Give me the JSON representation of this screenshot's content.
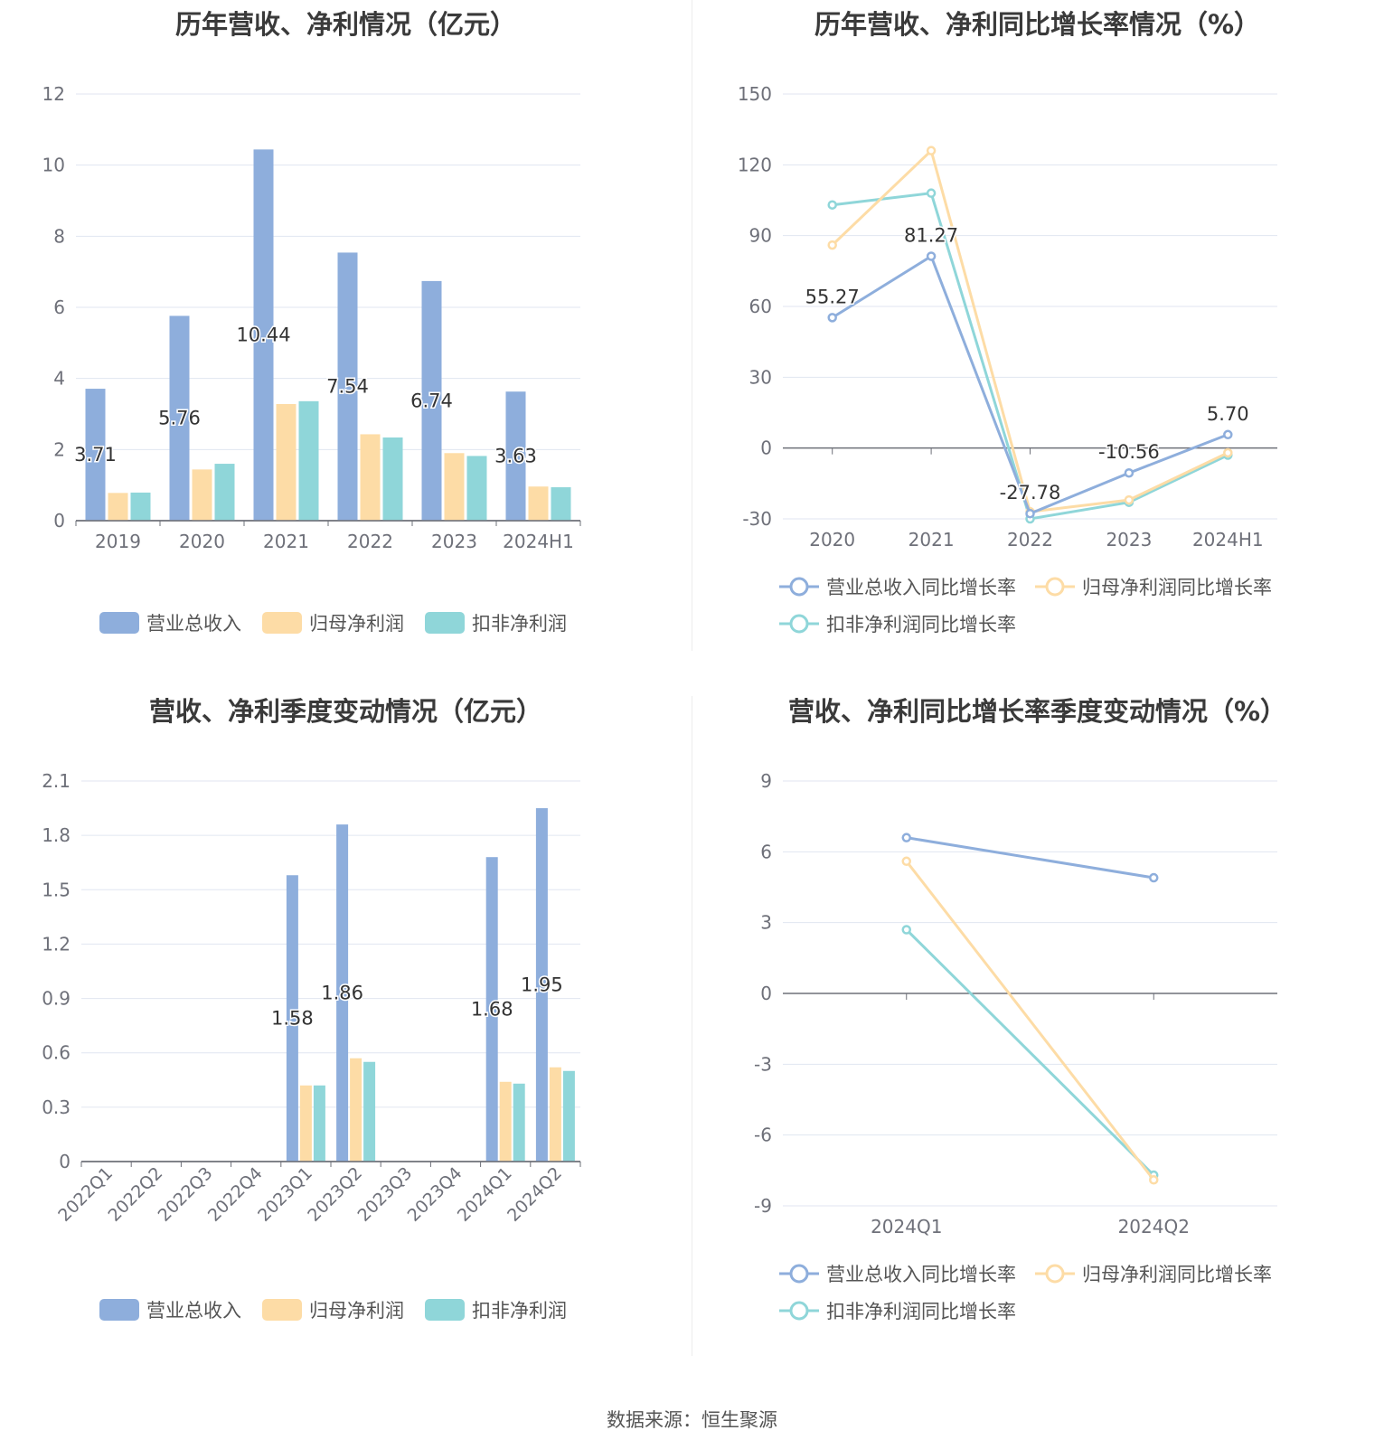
{
  "charts": {
    "annual_amounts": {
      "title": "历年营收、净利情况（亿元）",
      "chart_data": {
        "type": "bar",
        "categories": [
          "2019",
          "2020",
          "2021",
          "2022",
          "2023",
          "2024H1"
        ],
        "series": [
          {
            "name": "营业总收入",
            "values": [
              3.71,
              5.76,
              10.44,
              7.54,
              6.74,
              3.63
            ],
            "color": "#8eaedc",
            "labels": [
              "3.71",
              "5.76",
              "10.44",
              "7.54",
              "6.74",
              "3.63"
            ]
          },
          {
            "name": "归母净利润",
            "values": [
              0.78,
              1.44,
              3.28,
              2.43,
              1.9,
              0.96
            ],
            "color": "#fddca6"
          },
          {
            "name": "扣非净利润",
            "values": [
              0.79,
              1.6,
              3.36,
              2.34,
              1.82,
              0.94
            ],
            "color": "#8fd6d9"
          }
        ],
        "ylim": [
          0,
          12
        ],
        "yticks": [
          "0",
          "2",
          "4",
          "6",
          "8",
          "10",
          "12"
        ],
        "grid": true,
        "legend": "bottom"
      }
    },
    "annual_growth": {
      "title": "历年营收、净利同比增长率情况（%）",
      "chart_data": {
        "type": "line",
        "categories": [
          "2020",
          "2021",
          "2022",
          "2023",
          "2024H1"
        ],
        "series": [
          {
            "name": "营业总收入同比增长率",
            "values": [
              55.27,
              81.27,
              -27.78,
              -10.56,
              5.7
            ],
            "color": "#8eaedc",
            "labels": [
              "55.27",
              "81.27",
              "-27.78",
              "-10.56",
              "5.70"
            ]
          },
          {
            "name": "归母净利润同比增长率",
            "values": [
              86,
              126,
              -27,
              -22,
              -2
            ],
            "color": "#fddca6"
          },
          {
            "name": "扣非净利润同比增长率",
            "values": [
              103,
              108,
              -30,
              -23,
              -3
            ],
            "color": "#8fd6d9"
          }
        ],
        "ylim": [
          -30,
          150
        ],
        "yticks": [
          "-30",
          "0",
          "30",
          "60",
          "90",
          "120",
          "150"
        ],
        "grid": true,
        "legend": "bottom"
      }
    },
    "quarterly_amounts": {
      "title": "营收、净利季度变动情况（亿元）",
      "chart_data": {
        "type": "bar",
        "categories": [
          "2022Q1",
          "2022Q2",
          "2022Q3",
          "2022Q4",
          "2023Q1",
          "2023Q2",
          "2023Q3",
          "2023Q4",
          "2024Q1",
          "2024Q2"
        ],
        "series": [
          {
            "name": "营业总收入",
            "values": [
              null,
              null,
              null,
              null,
              1.58,
              1.86,
              null,
              null,
              1.68,
              1.95
            ],
            "color": "#8eaedc",
            "labels": [
              "",
              "",
              "",
              "",
              "1.58",
              "1.86",
              "",
              "",
              "1.68",
              "1.95"
            ]
          },
          {
            "name": "归母净利润",
            "values": [
              null,
              null,
              null,
              null,
              0.42,
              0.57,
              null,
              null,
              0.44,
              0.52
            ],
            "color": "#fddca6"
          },
          {
            "name": "扣非净利润",
            "values": [
              null,
              null,
              null,
              null,
              0.42,
              0.55,
              null,
              null,
              0.43,
              0.5
            ],
            "color": "#8fd6d9"
          }
        ],
        "ylim": [
          0,
          2.1
        ],
        "yticks": [
          "0",
          "0.3",
          "0.6",
          "0.9",
          "1.2",
          "1.5",
          "1.8",
          "2.1"
        ],
        "grid": true,
        "legend": "bottom"
      }
    },
    "quarterly_growth": {
      "title": "营收、净利同比增长率季度变动情况（%）",
      "chart_data": {
        "type": "line",
        "categories": [
          "2024Q1",
          "2024Q2"
        ],
        "series": [
          {
            "name": "营业总收入同比增长率",
            "values": [
              6.6,
              4.9
            ],
            "color": "#8eaedc"
          },
          {
            "name": "归母净利润同比增长率",
            "values": [
              5.6,
              -7.9
            ],
            "color": "#fddca6"
          },
          {
            "name": "扣非净利润同比增长率",
            "values": [
              2.7,
              -7.7
            ],
            "color": "#8fd6d9"
          }
        ],
        "ylim": [
          -9,
          9
        ],
        "yticks": [
          "-9",
          "-6",
          "-3",
          "0",
          "3",
          "6",
          "9"
        ],
        "grid": true,
        "legend": "bottom"
      }
    }
  },
  "footer": {
    "source": "数据来源：恒生聚源"
  }
}
